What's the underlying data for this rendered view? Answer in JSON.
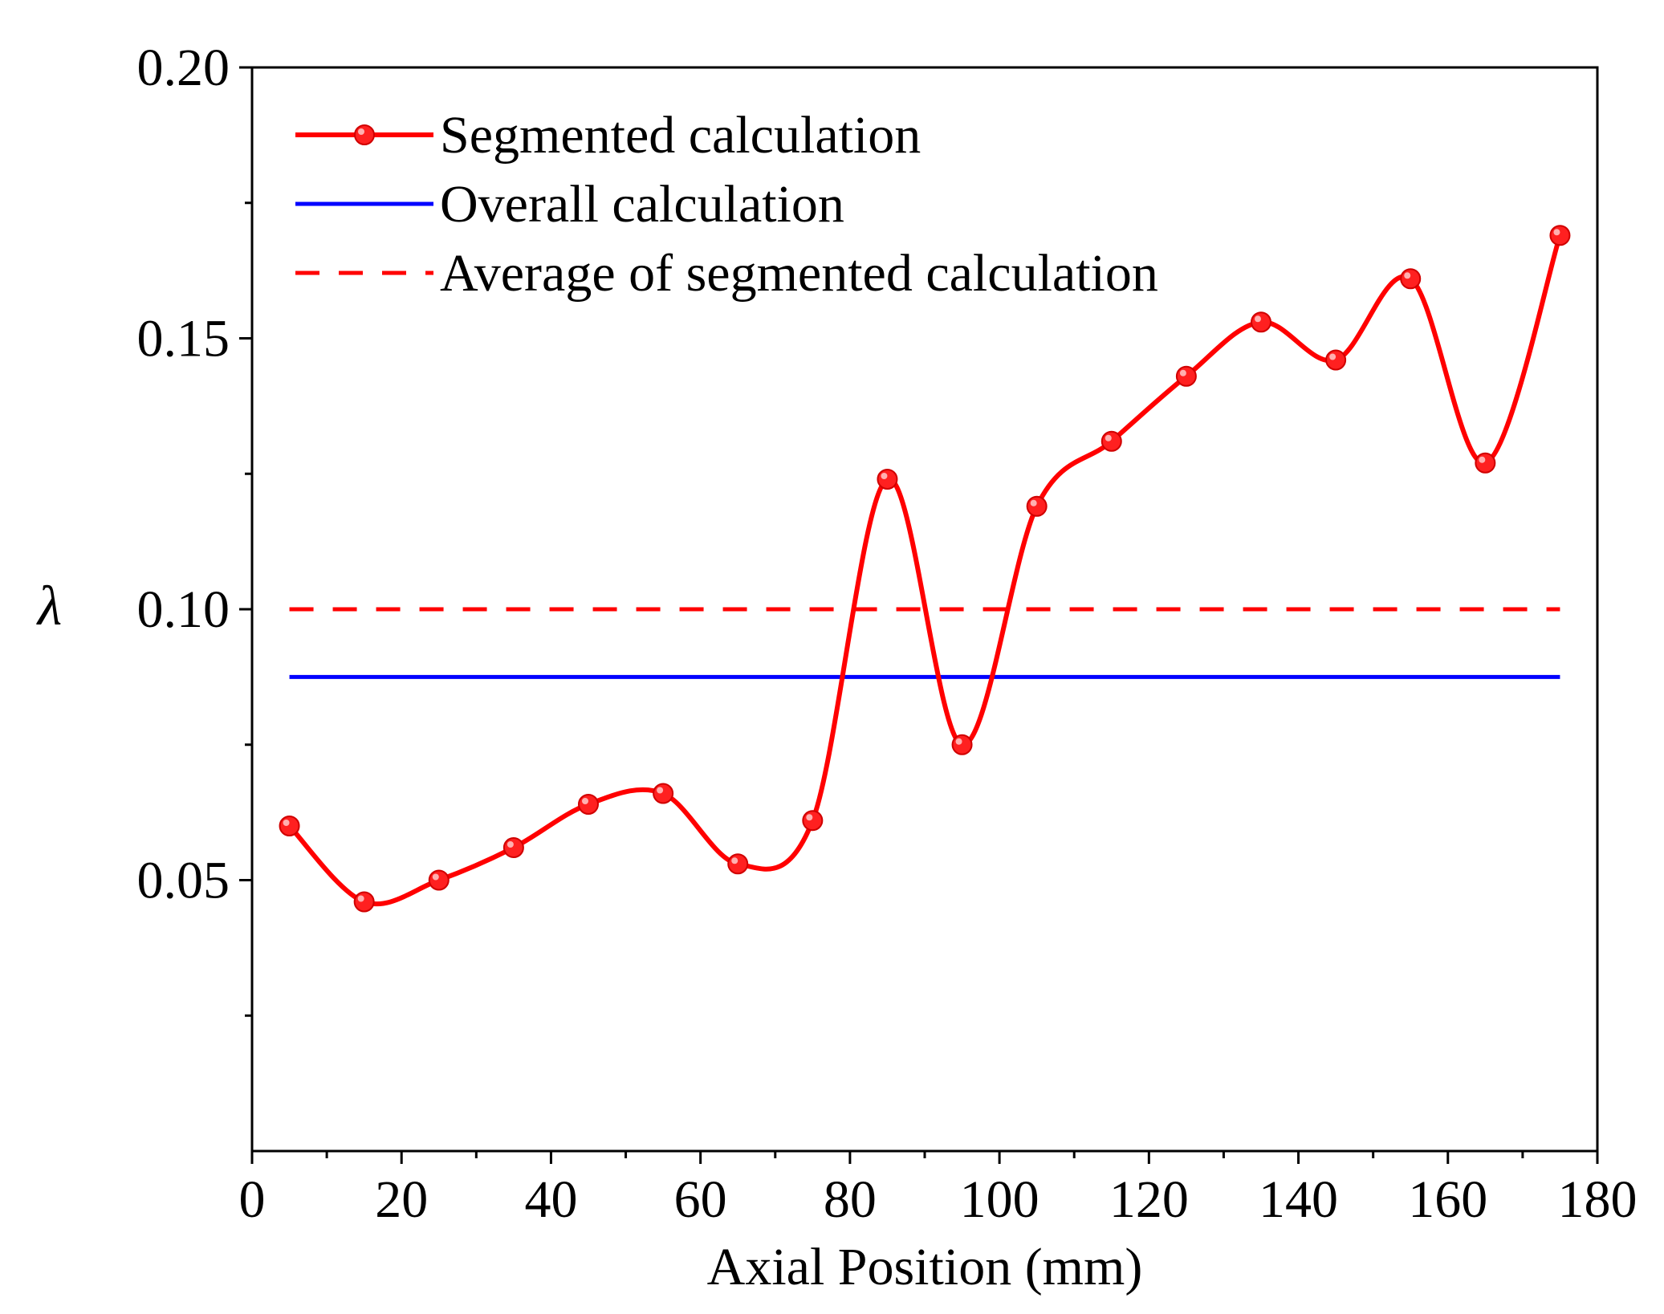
{
  "chart_data": {
    "type": "line",
    "title": "",
    "xlabel": "Axial Position (mm)",
    "ylabel": "λ",
    "xlim": [
      0,
      180
    ],
    "ylim": [
      0.0,
      0.2
    ],
    "xticks": [
      0,
      20,
      40,
      60,
      80,
      100,
      120,
      140,
      160,
      180
    ],
    "xtick_labels": [
      "0",
      "20",
      "40",
      "60",
      "80",
      "100",
      "120",
      "140",
      "160",
      "180"
    ],
    "yticks": [
      0.05,
      0.1,
      0.15,
      0.2
    ],
    "ytick_labels": [
      "0.05",
      "0.10",
      "0.15",
      "0.20"
    ],
    "grid": false,
    "legend_position": "top-left",
    "series": [
      {
        "name": "Segmented calculation",
        "style": "solid-with-markers",
        "color": "#ff0000",
        "x": [
          5,
          15,
          25,
          35,
          45,
          55,
          65,
          75,
          85,
          95,
          105,
          115,
          125,
          135,
          145,
          155,
          165,
          175
        ],
        "values": [
          0.06,
          0.046,
          0.05,
          0.056,
          0.064,
          0.066,
          0.053,
          0.061,
          0.124,
          0.075,
          0.119,
          0.131,
          0.143,
          0.153,
          0.146,
          0.161,
          0.127,
          0.169
        ]
      },
      {
        "name": "Overall calculation",
        "style": "solid",
        "color": "#0000ff",
        "x": [
          5,
          175
        ],
        "values": [
          0.0875,
          0.0875
        ]
      },
      {
        "name": "Average of segmented calculation",
        "style": "dashed",
        "color": "#ff0000",
        "x": [
          5,
          175
        ],
        "values": [
          0.1,
          0.1
        ]
      }
    ]
  }
}
